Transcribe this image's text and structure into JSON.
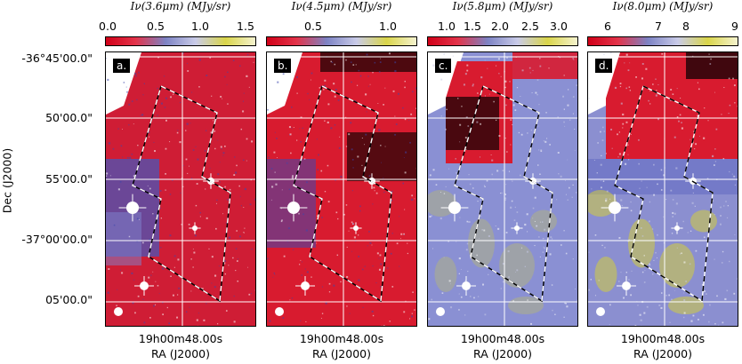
{
  "panels": [
    {
      "label": "a.",
      "colorbar_title": "Iν(3.6μm) (MJy/sr)",
      "colorbar_ticks": [
        "0.0",
        "0.5",
        "1.0",
        "1.5"
      ],
      "colormap": [
        "#d10018",
        "#e3344a",
        "#7d83c4",
        "#c9cbe8",
        "#d9d54a",
        "#f5f3cf"
      ],
      "background": "#cf1d35"
    },
    {
      "label": "b.",
      "colorbar_title": "Iν(4.5μm) (MJy/sr)",
      "colorbar_ticks": [
        "0.5",
        "1.0"
      ],
      "colormap": [
        "#d10018",
        "#e3344a",
        "#7d83c4",
        "#c9cbe8",
        "#d9d54a",
        "#f5f3cf"
      ],
      "background": "#d81b2f"
    },
    {
      "label": "c.",
      "colorbar_title": "Iν(5.8μm) (MJy/sr)",
      "colorbar_ticks": [
        "1.0",
        "1.5",
        "2.0",
        "2.5",
        "3.0"
      ],
      "colormap": [
        "#d10018",
        "#e3344a",
        "#7d83c4",
        "#c9cbe8",
        "#d9d54a",
        "#f5f3cf"
      ],
      "background": "#8a90d3"
    },
    {
      "label": "d.",
      "colorbar_title": "Iν(8.0μm) (MJy/sr)",
      "colorbar_ticks": [
        "6",
        "7",
        "8",
        "9"
      ],
      "colormap": [
        "#d10018",
        "#e3344a",
        "#7d83c4",
        "#c9cbe8",
        "#d9d54a",
        "#f5f3cf"
      ],
      "background": "#8b8fd0"
    }
  ],
  "axes": {
    "ylabel": "Dec (J2000)",
    "yticks": [
      "-36°45'00.0\"",
      "50'00.0\"",
      "55'00.0\"",
      "-37°00'00.0\"",
      "05'00.0\""
    ],
    "xtick": "19h00m48.00s",
    "xlabel": "RA (J2000)"
  }
}
